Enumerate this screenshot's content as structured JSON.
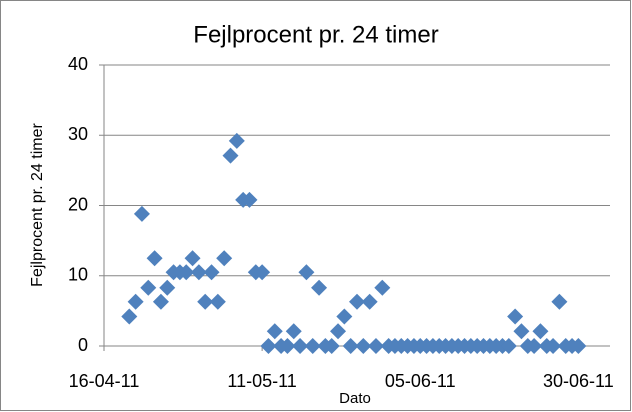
{
  "chart_data": {
    "type": "scatter",
    "title": "Fejlprocent pr. 24 timer",
    "xlabel": "Dato",
    "ylabel": "Fejlprocent pr. 24 timer",
    "x": [
      "20-04-11",
      "21-04-11",
      "22-04-11",
      "23-04-11",
      "24-04-11",
      "25-04-11",
      "26-04-11",
      "27-04-11",
      "28-04-11",
      "29-04-11",
      "30-04-11",
      "01-05-11",
      "02-05-11",
      "03-05-11",
      "04-05-11",
      "05-05-11",
      "06-05-11",
      "07-05-11",
      "08-05-11",
      "09-05-11",
      "10-05-11",
      "11-05-11",
      "12-05-11",
      "13-05-11",
      "14-05-11",
      "15-05-11",
      "16-05-11",
      "17-05-11",
      "18-05-11",
      "19-05-11",
      "20-05-11",
      "21-05-11",
      "22-05-11",
      "23-05-11",
      "24-05-11",
      "25-05-11",
      "26-05-11",
      "27-05-11",
      "28-05-11",
      "29-05-11",
      "30-05-11",
      "31-05-11",
      "01-06-11",
      "02-06-11",
      "03-06-11",
      "04-06-11",
      "05-06-11",
      "06-06-11",
      "07-06-11",
      "08-06-11",
      "09-06-11",
      "10-06-11",
      "11-06-11",
      "12-06-11",
      "13-06-11",
      "14-06-11",
      "15-06-11",
      "16-06-11",
      "17-06-11",
      "18-06-11",
      "19-06-11",
      "20-06-11",
      "21-06-11",
      "22-06-11",
      "23-06-11",
      "24-06-11",
      "25-06-11",
      "26-06-11",
      "27-06-11",
      "28-06-11",
      "29-06-11",
      "30-06-11"
    ],
    "values": [
      4.2,
      6.3,
      18.8,
      8.3,
      12.5,
      6.3,
      8.3,
      10.5,
      10.5,
      10.5,
      12.5,
      10.5,
      6.3,
      10.5,
      6.3,
      12.5,
      27.1,
      29.2,
      20.8,
      20.8,
      10.5,
      10.5,
      0,
      2.1,
      0,
      0,
      2.1,
      0,
      10.5,
      0,
      8.3,
      0,
      0,
      2.1,
      4.2,
      0,
      6.3,
      0,
      6.3,
      0,
      8.3,
      0,
      0,
      0,
      0,
      0,
      0,
      0,
      0,
      0,
      0,
      0,
      0,
      0,
      0,
      0,
      0,
      0,
      0,
      0,
      0,
      4.2,
      2.1,
      0,
      0,
      2.1,
      0,
      0,
      6.3,
      0,
      0,
      0
    ],
    "color": "#4f81bd",
    "xlim": [
      "16-04-11",
      "05-07-11"
    ],
    "xticks": [
      "16-04-11",
      "11-05-11",
      "05-06-11",
      "30-06-11"
    ],
    "ylim": [
      0,
      40
    ],
    "yticks": [
      0,
      10,
      20,
      30,
      40
    ],
    "grid": true
  }
}
